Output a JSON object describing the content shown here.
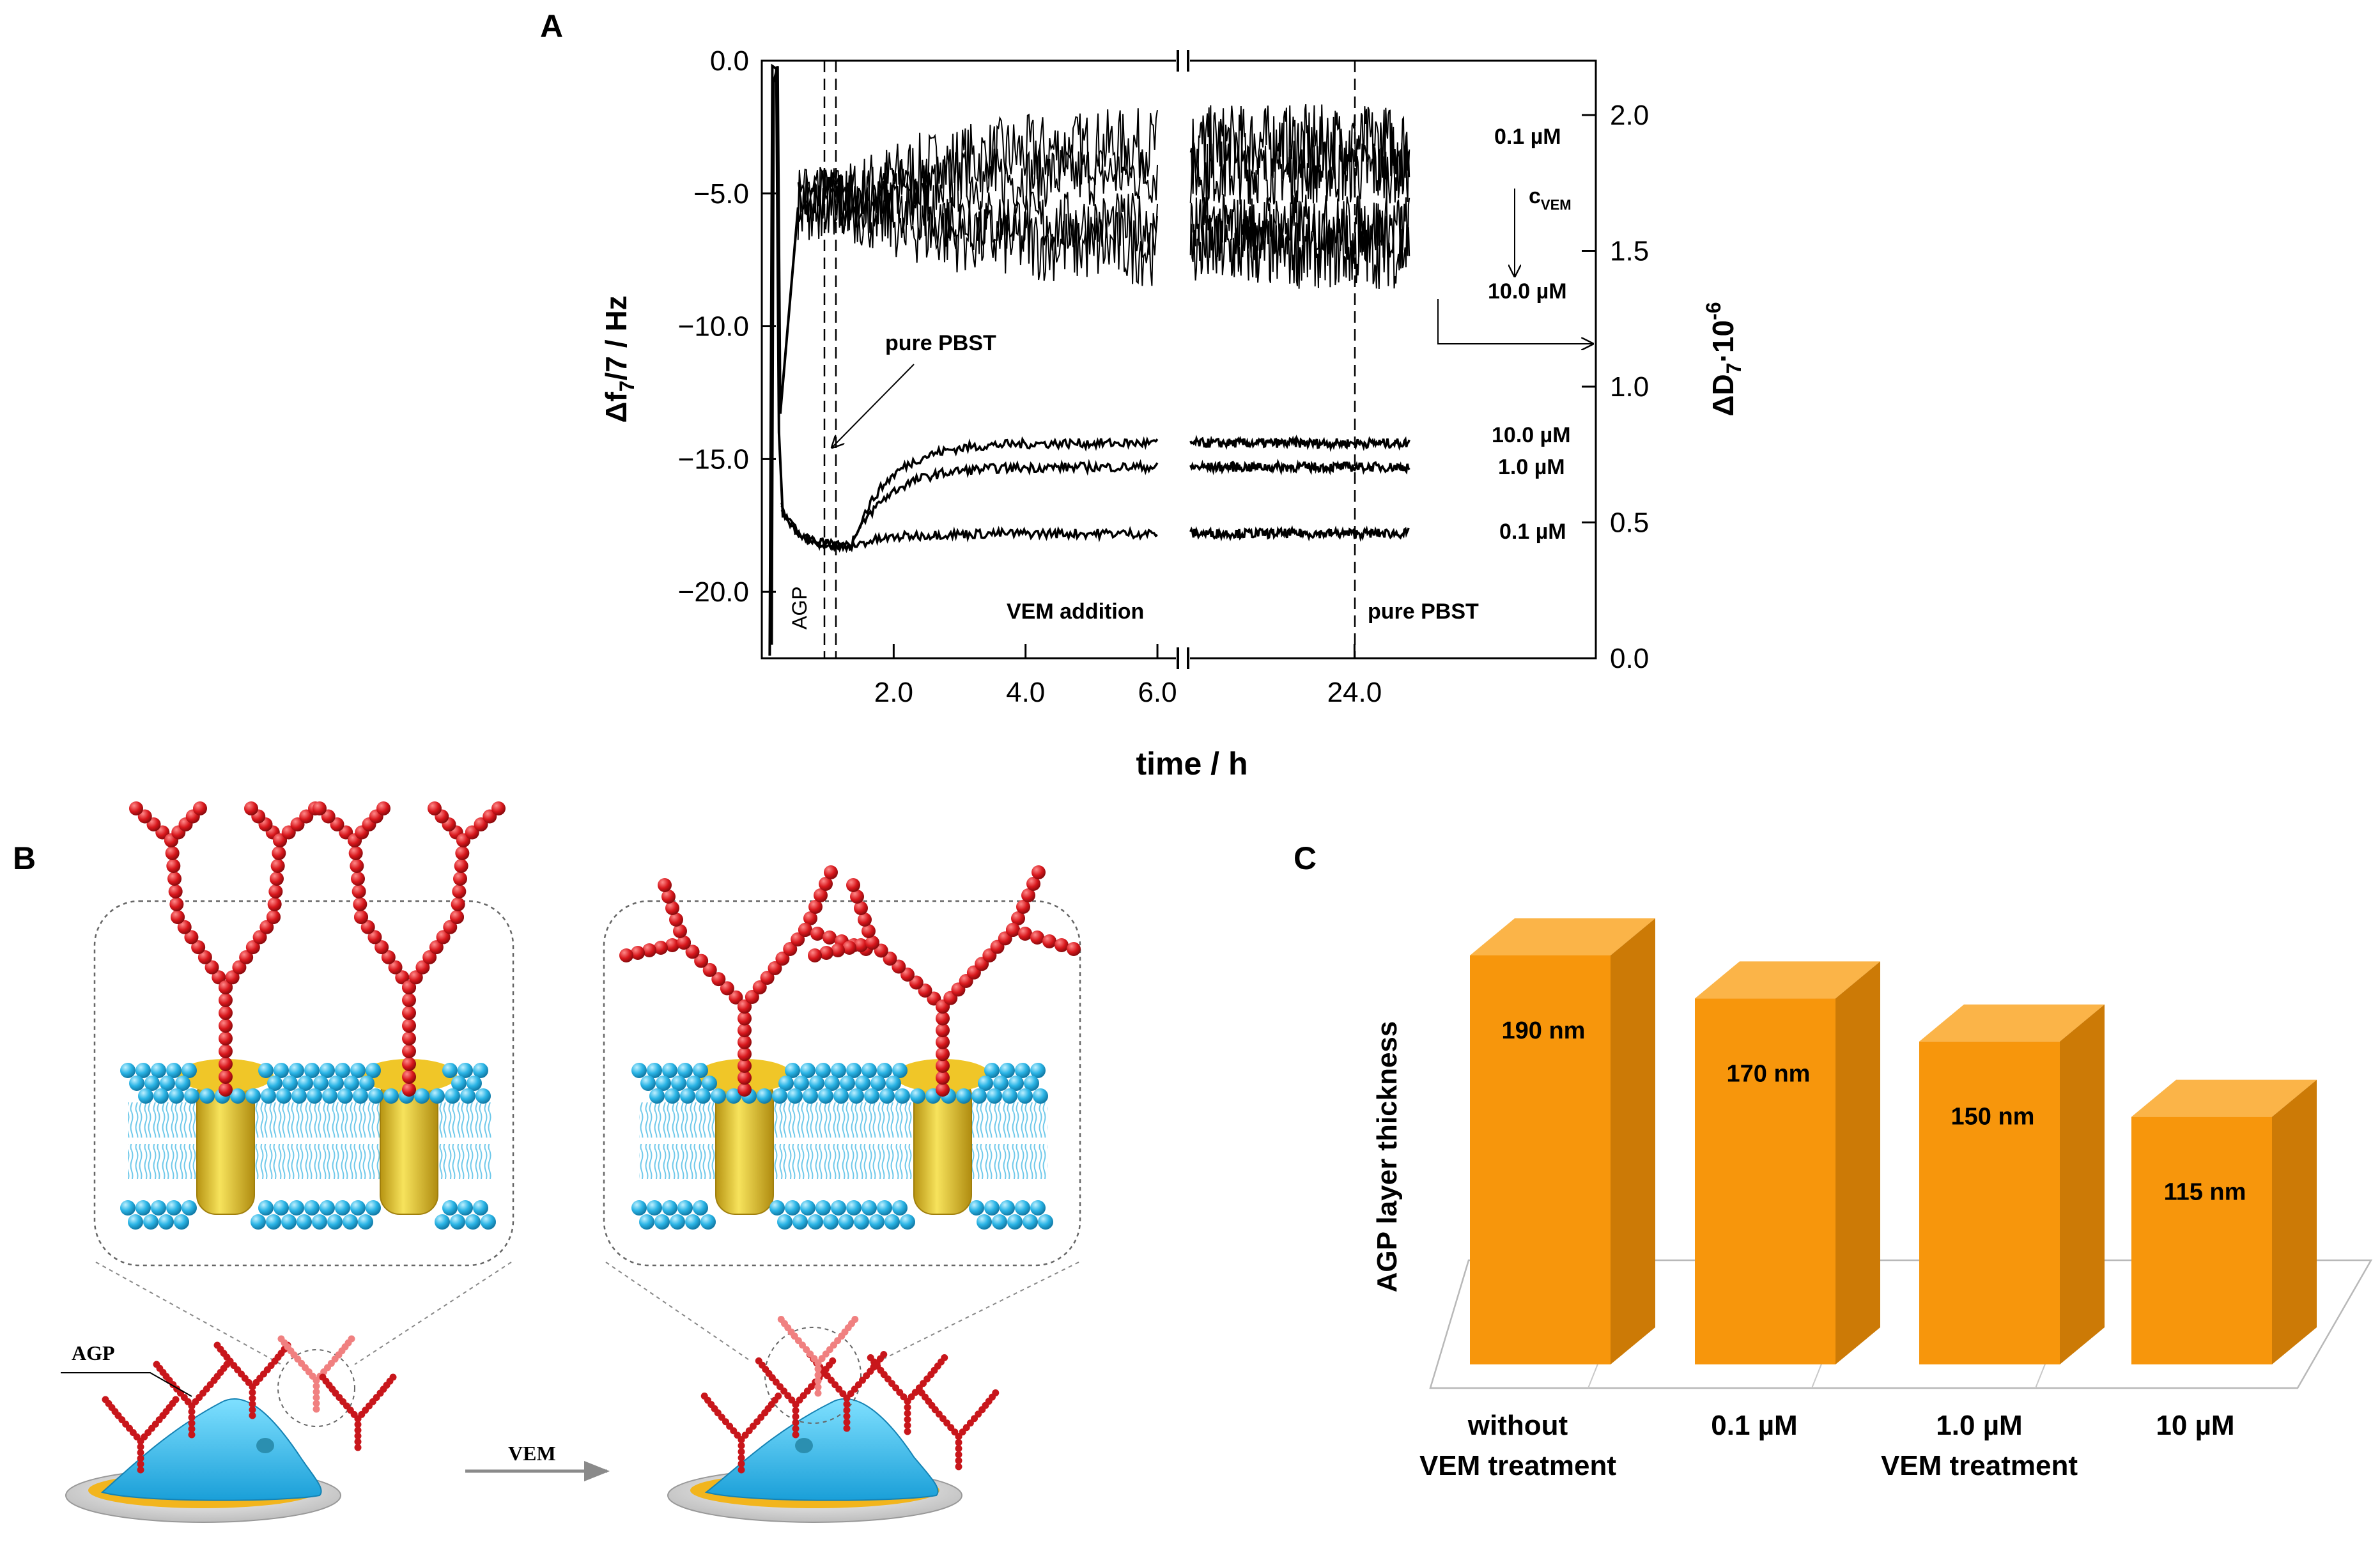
{
  "panels": {
    "a": "A",
    "b": "B",
    "c": "C"
  },
  "chart_data": [
    {
      "id": "A",
      "type": "line",
      "xlabel": "time / h",
      "ylabel_left": {
        "main": "Δf",
        "sub": "7",
        "rest": "/7 / Hz"
      },
      "ylabel_right": {
        "main": "ΔD",
        "sub": "7",
        "rest": "·10",
        "sup": "-6"
      },
      "x_axis": {
        "break_at": 6.0,
        "ticks": [
          "2.0",
          "4.0",
          "6.0",
          "24.0"
        ]
      },
      "y_left": {
        "range": [
          -22.5,
          0
        ],
        "ticks": [
          0.0,
          -5.0,
          -10.0,
          -15.0,
          -20.0
        ],
        "tick_labels": [
          "0.0",
          "−5.0",
          "−10.0",
          "−15.0",
          "−20.0"
        ]
      },
      "y_right": {
        "range": [
          0.0,
          2.2
        ],
        "ticks": [
          0.0,
          0.5,
          1.0,
          1.5,
          2.0
        ],
        "tick_labels": [
          "0.0",
          "0.5",
          "1.0",
          "1.5",
          "2.0"
        ]
      },
      "frequency_series": [
        {
          "name": "10.0 µM",
          "plateau": -14.4
        },
        {
          "name": "1.0 µM",
          "plateau": -15.3
        },
        {
          "name": "0.1 µM",
          "plateau": -17.8
        }
      ],
      "dissipation_series": [
        {
          "name": "0.1 µM",
          "plateau": 1.9
        },
        {
          "name": "10.0 µM",
          "plateau": 1.5
        }
      ],
      "concentration_label": {
        "main": "c",
        "sub": "VEM"
      },
      "annotations": {
        "agp": "AGP",
        "vem_addition": "VEM addition",
        "pure_pbst_1": "pure PBST",
        "pure_pbst_2": "pure PBST"
      }
    },
    {
      "id": "C",
      "type": "bar",
      "ylabel": "AGP layer thickness",
      "categories": [
        {
          "line1": "without",
          "line2": "VEM treatment"
        },
        {
          "line1": "0.1 µM",
          "line2": ""
        },
        {
          "line1": "1.0 µM",
          "line2": "VEM treatment"
        },
        {
          "line1": "10 µM",
          "line2": ""
        }
      ],
      "values": [
        190,
        170,
        150,
        115
      ],
      "value_labels": [
        "190 nm",
        "170 nm",
        "150 nm",
        "115 nm"
      ],
      "unit": "nm",
      "bar_color": "#f7960c",
      "bar_top_color": "#fbb448",
      "bar_side_color": "#cc7a06"
    }
  ],
  "diagram_b": {
    "agp_label": "AGP",
    "arrow_label": "VEM",
    "colors": {
      "glycan": "#d8171c",
      "lipid_head": "#2bb5e6",
      "protein": "#e8c12a",
      "cell": "#3ec4ee",
      "base": "#f2b51d"
    }
  }
}
